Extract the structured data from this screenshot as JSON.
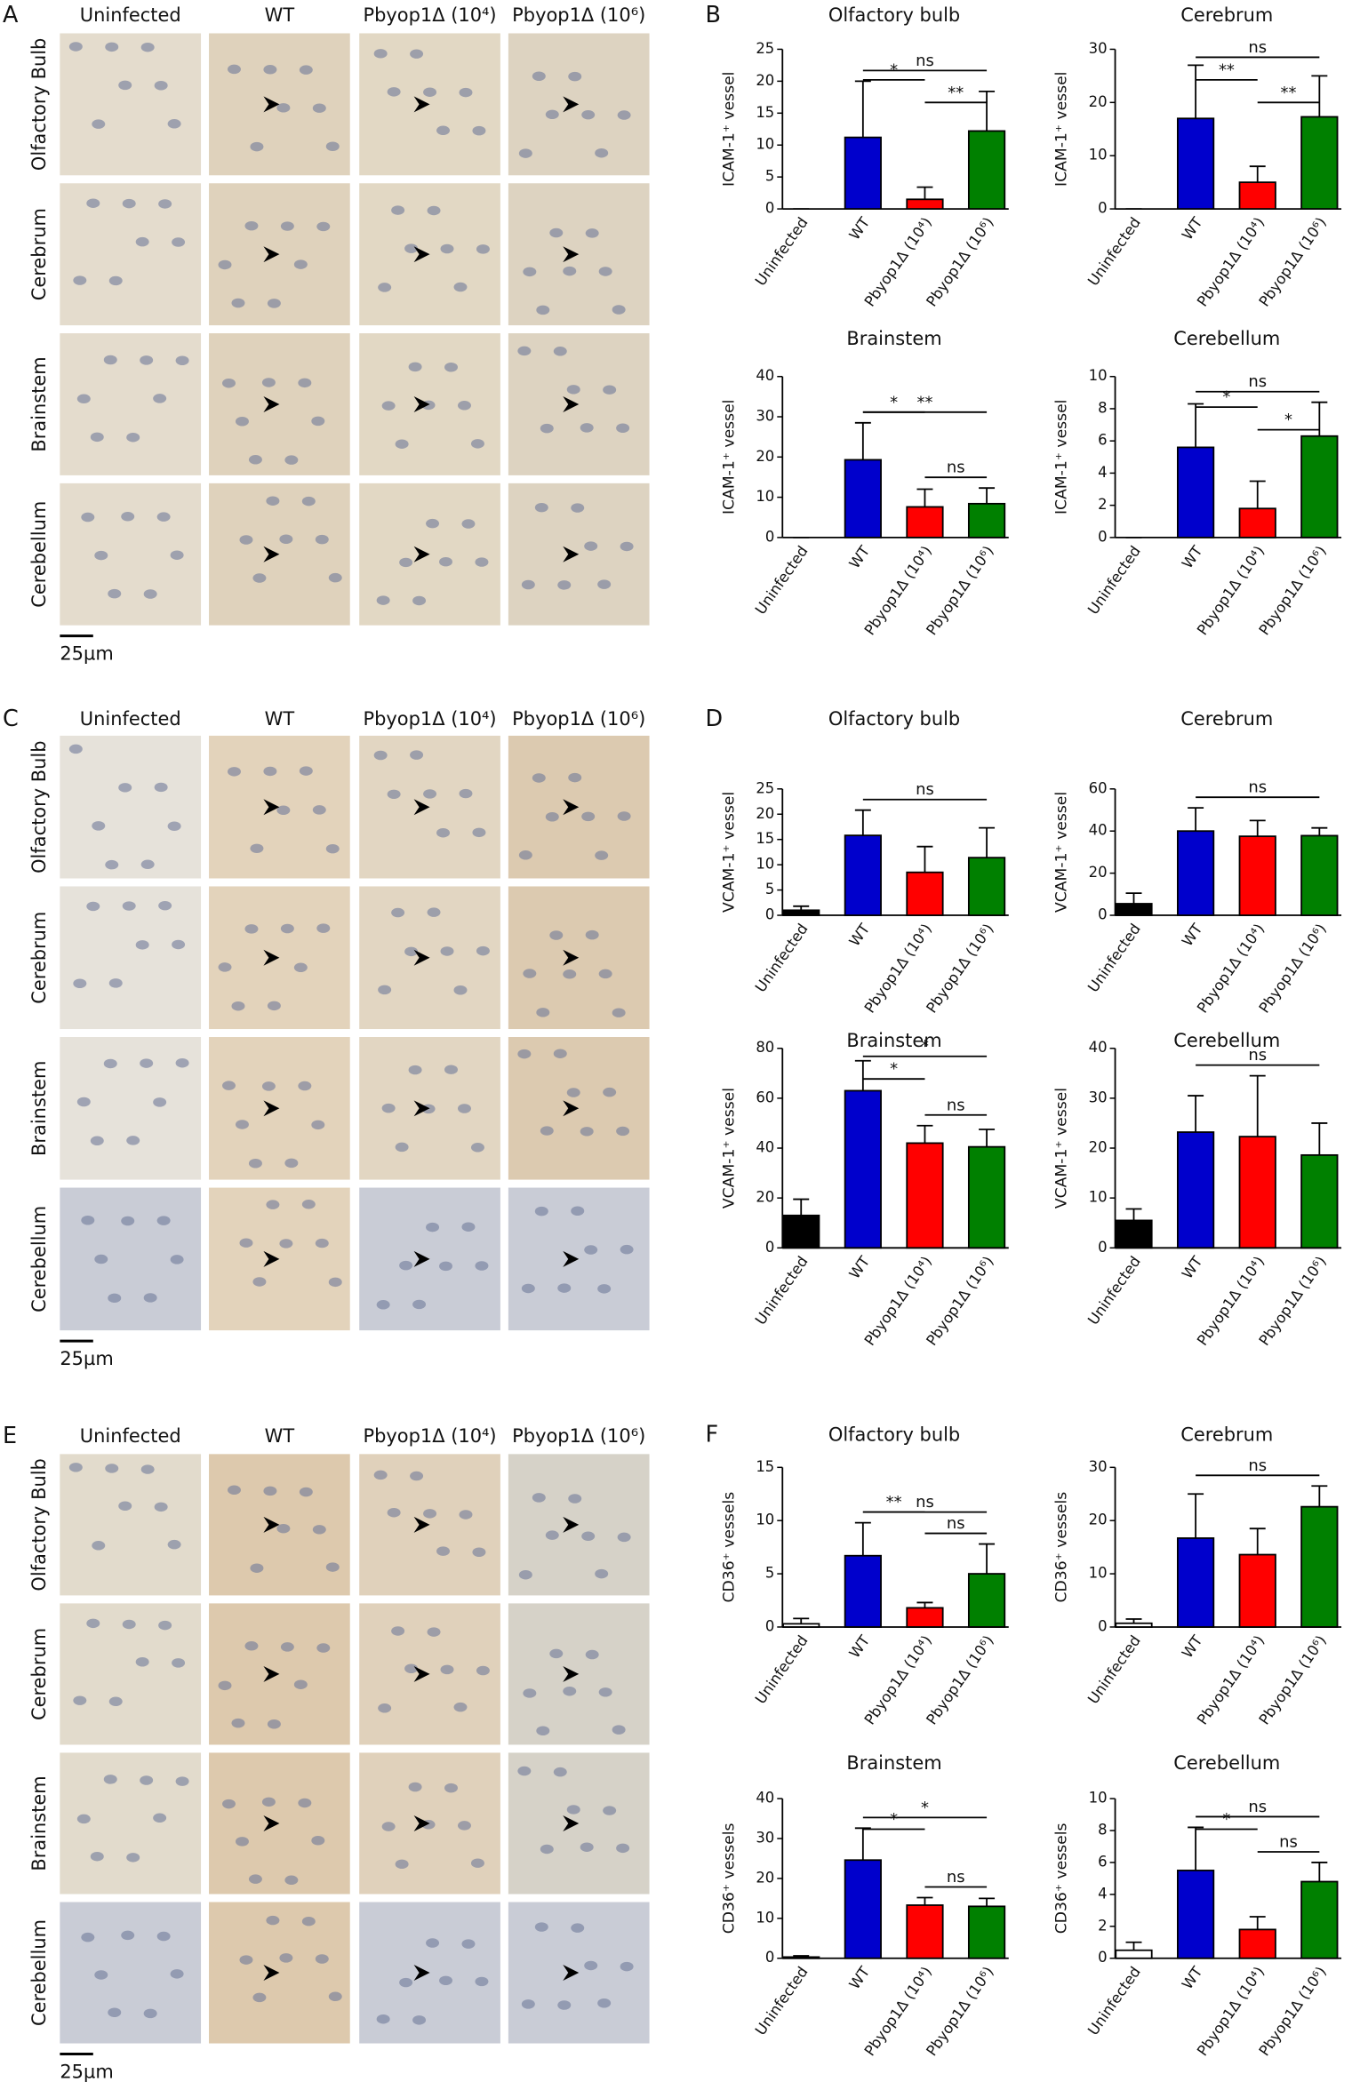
{
  "image_panels": [
    {
      "letter": "A",
      "columns": [
        "Uninfected",
        "WT",
        "Pbyop1Δ (10⁴)",
        "Pbyop1Δ (10⁶)"
      ],
      "rows": [
        "Olfactory Bulb",
        "Cerebrum",
        "Brainstem",
        "Cerebellum"
      ],
      "scale_bar": "25µm"
    },
    {
      "letter": "C",
      "columns": [
        "Uninfected",
        "WT",
        "Pbyop1Δ (10⁴)",
        "Pbyop1Δ (10⁶)"
      ],
      "rows": [
        "Olfactory Bulb",
        "Cerebrum",
        "Brainstem",
        "Cerebellum"
      ],
      "scale_bar": "25µm"
    },
    {
      "letter": "E",
      "columns": [
        "Uninfected",
        "WT",
        "Pbyop1Δ (10⁴)",
        "Pbyop1Δ (10⁶)"
      ],
      "rows": [
        "Olfactory Bulb",
        "Cerebrum",
        "Brainstem",
        "Cerebellum"
      ],
      "scale_bar": "25µm"
    }
  ],
  "chart_panel_letters": [
    "B",
    "D",
    "F"
  ],
  "chart_data": [
    {
      "type": "bar",
      "title": "Olfactory bulb",
      "ylabel": "ICAM-1⁺ vessel",
      "categories": [
        "Uninfected",
        "WT",
        "Pbyop1Δ (10⁴)",
        "Pbyop1Δ (10⁶)"
      ],
      "values": [
        0,
        11.2,
        1.5,
        12.2
      ],
      "errors": [
        0,
        8.8,
        1.9,
        6.2
      ],
      "colors": [
        "#000000",
        "#0000cc",
        "#ff0000",
        "#008000"
      ],
      "edgecolor": "#000000",
      "ylim": [
        0,
        25
      ],
      "yticks": [
        0,
        5,
        10,
        15,
        20,
        25
      ],
      "annotations": [
        {
          "text": "ns",
          "between": [
            "WT",
            "Pbyop1Δ (10⁶)"
          ]
        },
        {
          "text": "*",
          "between": [
            "WT",
            "Pbyop1Δ (10⁴)"
          ]
        },
        {
          "text": "**",
          "between": [
            "Pbyop1Δ (10⁴)",
            "Pbyop1Δ (10⁶)"
          ]
        }
      ]
    },
    {
      "type": "bar",
      "title": "Cerebrum",
      "ylabel": "ICAM-1⁺ vessel",
      "categories": [
        "Uninfected",
        "WT",
        "Pbyop1Δ (10⁴)",
        "Pbyop1Δ (10⁶)"
      ],
      "values": [
        0,
        17,
        5,
        17.3
      ],
      "errors": [
        0,
        10,
        3,
        7.7
      ],
      "colors": [
        "#000000",
        "#0000cc",
        "#ff0000",
        "#008000"
      ],
      "edgecolor": "#000000",
      "ylim": [
        0,
        30
      ],
      "yticks": [
        0,
        10,
        20,
        30
      ],
      "annotations": [
        {
          "text": "ns",
          "between": [
            "WT",
            "Pbyop1Δ (10⁶)"
          ]
        },
        {
          "text": "**",
          "between": [
            "WT",
            "Pbyop1Δ (10⁴)"
          ]
        },
        {
          "text": "**",
          "between": [
            "Pbyop1Δ (10⁴)",
            "Pbyop1Δ (10⁶)"
          ]
        }
      ]
    },
    {
      "type": "bar",
      "title": "Brainstem",
      "ylabel": "ICAM-1⁺ vessel",
      "categories": [
        "Uninfected",
        "WT",
        "Pbyop1Δ (10⁴)",
        "Pbyop1Δ (10⁶)"
      ],
      "values": [
        0,
        19.3,
        7.6,
        8.4
      ],
      "errors": [
        0,
        9.2,
        4.4,
        3.9
      ],
      "colors": [
        "#000000",
        "#0000cc",
        "#ff0000",
        "#008000"
      ],
      "edgecolor": "#000000",
      "ylim": [
        0,
        40
      ],
      "yticks": [
        0,
        10,
        20,
        30,
        40
      ],
      "annotations": [
        {
          "text": "**",
          "between": [
            "WT",
            "Pbyop1Δ (10⁶)"
          ]
        },
        {
          "text": "*",
          "between": [
            "WT",
            "Pbyop1Δ (10⁴)"
          ]
        },
        {
          "text": "ns",
          "between": [
            "Pbyop1Δ (10⁴)",
            "Pbyop1Δ (10⁶)"
          ]
        }
      ]
    },
    {
      "type": "bar",
      "title": "Cerebellum",
      "ylabel": "ICAM-1⁺ vessel",
      "categories": [
        "Uninfected",
        "WT",
        "Pbyop1Δ (10⁴)",
        "Pbyop1Δ (10⁶)"
      ],
      "values": [
        0,
        5.6,
        1.8,
        6.3
      ],
      "errors": [
        0,
        2.7,
        1.7,
        2.1
      ],
      "colors": [
        "#000000",
        "#0000cc",
        "#ff0000",
        "#008000"
      ],
      "edgecolor": "#000000",
      "ylim": [
        0,
        10
      ],
      "yticks": [
        0,
        2,
        4,
        6,
        8,
        10
      ],
      "annotations": [
        {
          "text": "ns",
          "between": [
            "WT",
            "Pbyop1Δ (10⁶)"
          ]
        },
        {
          "text": "*",
          "between": [
            "WT",
            "Pbyop1Δ (10⁴)"
          ]
        },
        {
          "text": "*",
          "between": [
            "Pbyop1Δ (10⁴)",
            "Pbyop1Δ (10⁶)"
          ]
        }
      ]
    },
    {
      "type": "bar",
      "title": "Olfactory bulb",
      "ylabel": "VCAM-1⁺ vessel",
      "categories": [
        "Uninfected",
        "WT",
        "Pbyop1Δ (10⁴)",
        "Pbyop1Δ (10⁶)"
      ],
      "values": [
        1,
        15.8,
        8.5,
        11.4
      ],
      "errors": [
        0.8,
        5,
        5.1,
        5.9
      ],
      "colors": [
        "#000000",
        "#0000cc",
        "#ff0000",
        "#008000"
      ],
      "edgecolor": "#000000",
      "ylim": [
        0,
        25
      ],
      "yticks": [
        0,
        5,
        10,
        15,
        20,
        25
      ],
      "annotations": [
        {
          "text": "ns",
          "between": [
            "WT",
            "Pbyop1Δ (10⁶)"
          ]
        }
      ]
    },
    {
      "type": "bar",
      "title": "Cerebrum",
      "ylabel": "VCAM-1⁺ vessel",
      "categories": [
        "Uninfected",
        "WT",
        "Pbyop1Δ (10⁴)",
        "Pbyop1Δ (10⁶)"
      ],
      "values": [
        5.5,
        40,
        37.5,
        37.8
      ],
      "errors": [
        5,
        11,
        7.5,
        3.7
      ],
      "colors": [
        "#000000",
        "#0000cc",
        "#ff0000",
        "#008000"
      ],
      "edgecolor": "#000000",
      "ylim": [
        0,
        60
      ],
      "yticks": [
        0,
        20,
        40,
        60
      ],
      "annotations": [
        {
          "text": "ns",
          "between": [
            "WT",
            "Pbyop1Δ (10⁶)"
          ]
        }
      ]
    },
    {
      "type": "bar",
      "title": "Brainstem",
      "ylabel": "VCAM-1⁺ vessel",
      "categories": [
        "Uninfected",
        "WT",
        "Pbyop1Δ (10⁴)",
        "Pbyop1Δ (10⁶)"
      ],
      "values": [
        13,
        63,
        42,
        40.5
      ],
      "errors": [
        6.5,
        12,
        7,
        7
      ],
      "colors": [
        "#000000",
        "#0000cc",
        "#ff0000",
        "#008000"
      ],
      "edgecolor": "#000000",
      "ylim": [
        0,
        80
      ],
      "yticks": [
        0,
        20,
        40,
        60,
        80
      ],
      "annotations": [
        {
          "text": "*",
          "between": [
            "WT",
            "Pbyop1Δ (10⁶)"
          ]
        },
        {
          "text": "*",
          "between": [
            "WT",
            "Pbyop1Δ (10⁴)"
          ]
        },
        {
          "text": "ns",
          "between": [
            "Pbyop1Δ (10⁴)",
            "Pbyop1Δ (10⁶)"
          ]
        }
      ]
    },
    {
      "type": "bar",
      "title": "Cerebellum",
      "ylabel": "VCAM-1⁺ vessel",
      "categories": [
        "Uninfected",
        "WT",
        "Pbyop1Δ (10⁴)",
        "Pbyop1Δ (10⁶)"
      ],
      "values": [
        5.5,
        23.2,
        22.3,
        18.6
      ],
      "errors": [
        2.3,
        7.3,
        12.2,
        6.4
      ],
      "colors": [
        "#000000",
        "#0000cc",
        "#ff0000",
        "#008000"
      ],
      "edgecolor": "#000000",
      "ylim": [
        0,
        40
      ],
      "yticks": [
        0,
        10,
        20,
        30,
        40
      ],
      "annotations": [
        {
          "text": "ns",
          "between": [
            "WT",
            "Pbyop1Δ (10⁶)"
          ]
        }
      ]
    },
    {
      "type": "bar",
      "title": "Olfactory bulb",
      "ylabel": "CD36⁺ vessels",
      "categories": [
        "Uninfected",
        "WT",
        "Pbyop1Δ (10⁴)",
        "Pbyop1Δ (10⁶)"
      ],
      "values": [
        0.3,
        6.7,
        1.8,
        5
      ],
      "errors": [
        0.5,
        3.1,
        0.5,
        2.8
      ],
      "colors": [
        "#ffffff",
        "#0000cc",
        "#ff0000",
        "#008000"
      ],
      "edgecolor": "#000000",
      "ylim": [
        0,
        15
      ],
      "yticks": [
        0,
        5,
        10,
        15
      ],
      "annotations": [
        {
          "text": "ns",
          "between": [
            "WT",
            "Pbyop1Δ (10⁶)"
          ]
        },
        {
          "text": "**",
          "between": [
            "WT",
            "Pbyop1Δ (10⁴)"
          ]
        },
        {
          "text": "ns",
          "between": [
            "Pbyop1Δ (10⁴)",
            "Pbyop1Δ (10⁶)"
          ]
        }
      ]
    },
    {
      "type": "bar",
      "title": "Cerebrum",
      "ylabel": "CD36⁺ vessels",
      "categories": [
        "Uninfected",
        "WT",
        "Pbyop1Δ (10⁴)",
        "Pbyop1Δ (10⁶)"
      ],
      "values": [
        0.7,
        16.7,
        13.6,
        22.6
      ],
      "errors": [
        0.8,
        8.3,
        4.9,
        3.9
      ],
      "colors": [
        "#ffffff",
        "#0000cc",
        "#ff0000",
        "#008000"
      ],
      "edgecolor": "#000000",
      "ylim": [
        0,
        30
      ],
      "yticks": [
        0,
        10,
        20,
        30
      ],
      "annotations": [
        {
          "text": "ns",
          "between": [
            "WT",
            "Pbyop1Δ (10⁶)"
          ]
        }
      ]
    },
    {
      "type": "bar",
      "title": "Brainstem",
      "ylabel": "CD36⁺ vessels",
      "categories": [
        "Uninfected",
        "WT",
        "Pbyop1Δ (10⁴)",
        "Pbyop1Δ (10⁶)"
      ],
      "values": [
        0.3,
        24.6,
        13.3,
        13
      ],
      "errors": [
        0.3,
        8,
        1.9,
        2
      ],
      "colors": [
        "#ffffff",
        "#0000cc",
        "#ff0000",
        "#008000"
      ],
      "edgecolor": "#000000",
      "ylim": [
        0,
        40
      ],
      "yticks": [
        0,
        10,
        20,
        30,
        40
      ],
      "annotations": [
        {
          "text": "*",
          "between": [
            "WT",
            "Pbyop1Δ (10⁶)"
          ]
        },
        {
          "text": "*",
          "between": [
            "WT",
            "Pbyop1Δ (10⁴)"
          ]
        },
        {
          "text": "ns",
          "between": [
            "Pbyop1Δ (10⁴)",
            "Pbyop1Δ (10⁶)"
          ]
        }
      ]
    },
    {
      "type": "bar",
      "title": "Cerebellum",
      "ylabel": "CD36⁺ vessels",
      "categories": [
        "Uninfected",
        "WT",
        "Pbyop1Δ (10⁴)",
        "Pbyop1Δ (10⁶)"
      ],
      "values": [
        0.5,
        5.5,
        1.8,
        4.8
      ],
      "errors": [
        0.5,
        2.7,
        0.8,
        1.2
      ],
      "colors": [
        "#ffffff",
        "#0000cc",
        "#ff0000",
        "#008000"
      ],
      "edgecolor": "#000000",
      "ylim": [
        0,
        10
      ],
      "yticks": [
        0,
        2,
        4,
        6,
        8,
        10
      ],
      "annotations": [
        {
          "text": "ns",
          "between": [
            "WT",
            "Pbyop1Δ (10⁶)"
          ]
        },
        {
          "text": "*",
          "between": [
            "WT",
            "Pbyop1Δ (10⁴)"
          ]
        },
        {
          "text": "ns",
          "between": [
            "Pbyop1Δ (10⁴)",
            "Pbyop1Δ (10⁶)"
          ]
        }
      ]
    }
  ]
}
